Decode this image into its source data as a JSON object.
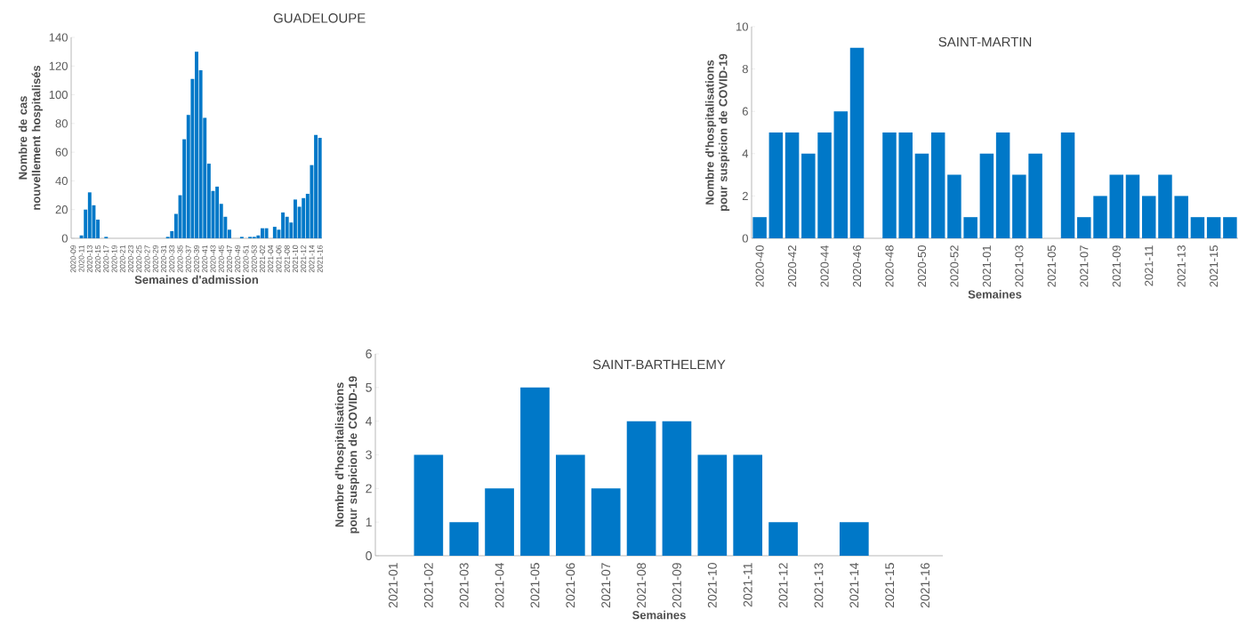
{
  "chart_data": [
    {
      "type": "bar",
      "title": "GUADELOUPE",
      "xlabel": "Semaines d'admission",
      "ylabel": "Nombre de cas nouvellement hospitalisés",
      "color": "#0078c8",
      "ylim": [
        0,
        140
      ],
      "yticks": [
        0,
        20,
        40,
        60,
        80,
        100,
        120,
        140
      ],
      "categories": [
        "2020-09",
        null,
        "2020-11",
        null,
        "2020-13",
        null,
        "2020-15",
        null,
        "2020-17",
        null,
        "2020-19",
        null,
        "2020-21",
        null,
        "2020-23",
        null,
        "2020-25",
        null,
        "2020-27",
        null,
        "2020-29",
        null,
        "2020-31",
        null,
        "2020-33",
        null,
        "2020-35",
        null,
        "2020-37",
        null,
        "2020-39",
        null,
        "2020-41",
        null,
        "2020-43",
        null,
        "2020-45",
        null,
        "2020-47",
        null,
        "2020-49",
        null,
        "2020-51",
        null,
        "2020-53",
        null,
        "2021-02",
        null,
        "2021-04",
        null,
        "2021-06",
        null,
        "2021-08",
        null,
        "2021-10",
        null,
        "2021-12",
        null,
        "2021-14",
        null,
        "2021-16"
      ],
      "values": [
        0,
        0,
        2,
        20,
        32,
        23,
        13,
        0,
        1,
        0,
        0,
        0,
        0,
        0,
        0,
        0,
        0,
        0,
        0,
        0,
        0,
        0,
        0,
        1,
        5,
        17,
        30,
        69,
        86,
        111,
        130,
        117,
        84,
        52,
        33,
        36,
        24,
        15,
        6,
        0,
        0,
        1,
        0,
        1,
        1,
        2,
        7,
        7,
        0,
        8,
        6,
        18,
        15,
        11,
        27,
        22,
        28,
        31,
        51,
        72,
        70
      ]
    },
    {
      "type": "bar",
      "title": "SAINT-MARTIN",
      "xlabel": "Semaines",
      "ylabel": "Nombre d'hospitalisations  pour suspicion de COVID-19",
      "color": "#0078c8",
      "ylim": [
        0,
        10
      ],
      "yticks": [
        0,
        2,
        4,
        6,
        8,
        10
      ],
      "categories": [
        "2020-40",
        null,
        "2020-42",
        null,
        "2020-44",
        null,
        "2020-46",
        null,
        "2020-48",
        null,
        "2020-50",
        null,
        "2020-52",
        null,
        "2021-01",
        null,
        "2021-03",
        null,
        "2021-05",
        null,
        "2021-07",
        null,
        "2021-09",
        null,
        "2021-11",
        null,
        "2021-13",
        null,
        "2021-15",
        null
      ],
      "values": [
        1,
        5,
        5,
        4,
        5,
        6,
        9,
        0,
        5,
        5,
        4,
        5,
        3,
        1,
        4,
        5,
        3,
        4,
        0,
        5,
        1,
        2,
        3,
        3,
        2,
        3,
        2,
        1,
        1,
        1
      ]
    },
    {
      "type": "bar",
      "title": "SAINT-BARTHELEMY",
      "xlabel": "Semaines",
      "ylabel": "Nombre d'hospitalisations pour suspicion de COVID-19",
      "color": "#0078c8",
      "ylim": [
        0,
        6
      ],
      "yticks": [
        0,
        1,
        2,
        3,
        4,
        5,
        6
      ],
      "categories": [
        "2021-01",
        "2021-02",
        "2021-03",
        "2021-04",
        "2021-05",
        "2021-06",
        "2021-07",
        "2021-08",
        "2021-09",
        "2021-10",
        "2021-11",
        "2021-12",
        "2021-13",
        "2021-14",
        "2021-15",
        "2021-16"
      ],
      "values": [
        0,
        3,
        1,
        2,
        5,
        3,
        2,
        4,
        4,
        3,
        3,
        1,
        0,
        1,
        0,
        0
      ]
    }
  ]
}
